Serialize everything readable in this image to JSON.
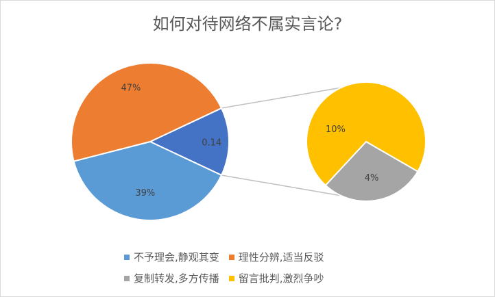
{
  "chart_data": {
    "type": "pie",
    "subtype": "pie-of-pie",
    "title": "如何对待网络不属实言论?",
    "slices": [
      {
        "name": "不予理会,静观其变",
        "value": 39,
        "label": "39%",
        "color": "#5b9bd5",
        "group": "main"
      },
      {
        "name": "理性分辨,适当反驳",
        "value": 47,
        "label": "47%",
        "color": "#ed7d31",
        "group": "main"
      },
      {
        "name": "复制转发,多方传播",
        "value": 4,
        "label": "4%",
        "color": "#a5a5a5",
        "group": "secondary"
      },
      {
        "name": "留言批判,激烈争吵",
        "value": 10,
        "label": "10%",
        "color": "#ffc000",
        "group": "secondary"
      }
    ],
    "other_slice": {
      "value": 0.14,
      "label": "0.14",
      "color": "#4472c4"
    },
    "legend_position": "bottom",
    "connector_color": "#bfbfbf"
  }
}
